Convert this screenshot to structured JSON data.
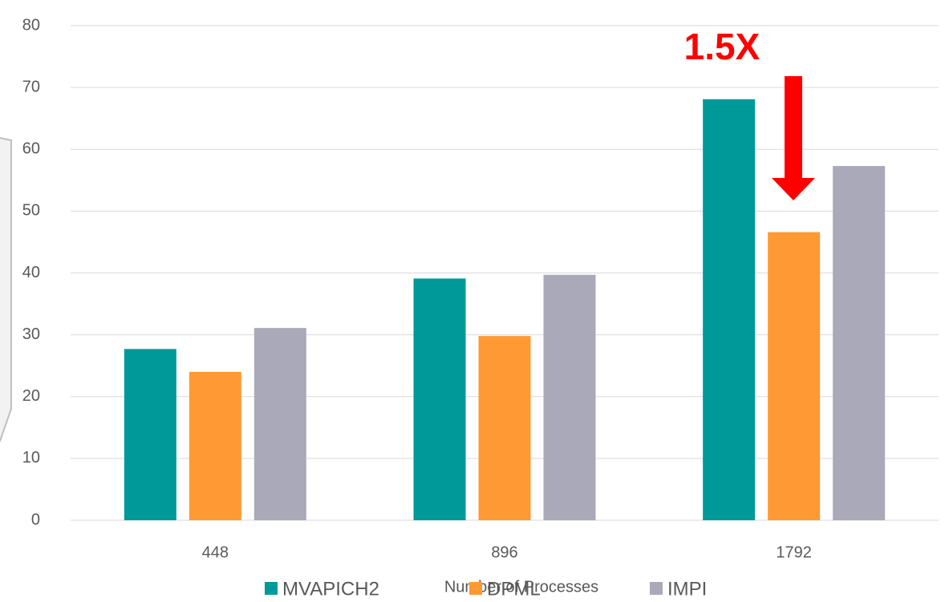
{
  "chart_data": {
    "type": "bar",
    "categories": [
      "448",
      "896",
      "1792"
    ],
    "series": [
      {
        "name": "MVAPICH2",
        "color": "#009999",
        "values": [
          27.7,
          39.1,
          68.1
        ]
      },
      {
        "name": "DPML",
        "color": "#ff9933",
        "values": [
          24,
          29.8,
          46.6
        ]
      },
      {
        "name": "IMPI",
        "color": "#aaa9b9",
        "values": [
          31.1,
          39.7,
          57.3
        ]
      }
    ],
    "x_label": "Number of Processes",
    "annotation": "1.5X",
    "ylim": [
      0,
      80
    ],
    "yticks": [
      0,
      10,
      20,
      30,
      40,
      50,
      60,
      70,
      80
    ],
    "grid": true,
    "legend": "bottom"
  }
}
